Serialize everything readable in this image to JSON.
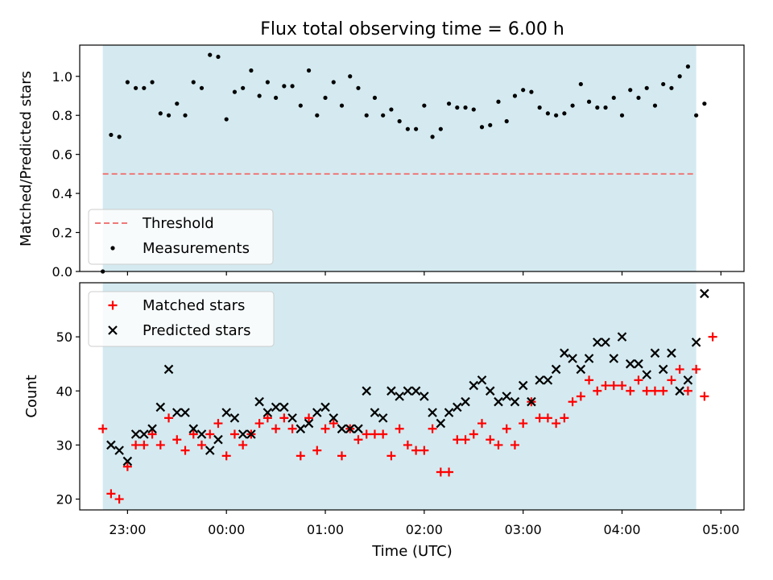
{
  "chart_data": {
    "title": "Flux total observing time = 6.00 h",
    "xlabel": "Time (UTC)",
    "x_ticks": [
      "23:00",
      "00:00",
      "01:00",
      "02:00",
      "03:00",
      "04:00",
      "05:00"
    ],
    "xlim": [
      "22:31",
      "05:14"
    ],
    "observing_window": [
      "22:45",
      "04:45"
    ],
    "colors": {
      "window": "#d4eaf0",
      "threshold": "#f07878",
      "matched": "#ff0000",
      "predicted": "#000000",
      "measurement": "#000000"
    },
    "panels": [
      {
        "type": "scatter",
        "ylabel": "Matched/Predicted stars",
        "ylim": [
          0,
          1.16
        ],
        "y_ticks": [
          "0.0",
          "0.2",
          "0.4",
          "0.6",
          "0.8",
          "1.0"
        ],
        "legend_position": "lower-left",
        "threshold": {
          "name": "Threshold",
          "value": 0.5,
          "x_range": [
            "22:45",
            "04:45"
          ]
        },
        "series": [
          {
            "name": "Measurements",
            "marker": "dot",
            "points": [
              [
                "22:45",
                0.0
              ],
              [
                "22:50",
                0.7
              ],
              [
                "22:55",
                0.69
              ],
              [
                "23:00",
                0.97
              ],
              [
                "23:05",
                0.94
              ],
              [
                "23:10",
                0.94
              ],
              [
                "23:15",
                0.97
              ],
              [
                "23:20",
                0.81
              ],
              [
                "23:25",
                0.8
              ],
              [
                "23:30",
                0.86
              ],
              [
                "23:35",
                0.8
              ],
              [
                "23:40",
                0.97
              ],
              [
                "23:45",
                0.94
              ],
              [
                "23:50",
                1.11
              ],
              [
                "23:55",
                1.1
              ],
              [
                "00:00",
                0.78
              ],
              [
                "00:05",
                0.92
              ],
              [
                "00:10",
                0.94
              ],
              [
                "00:15",
                1.03
              ],
              [
                "00:20",
                0.9
              ],
              [
                "00:25",
                0.97
              ],
              [
                "00:30",
                0.89
              ],
              [
                "00:35",
                0.95
              ],
              [
                "00:40",
                0.95
              ],
              [
                "00:45",
                0.85
              ],
              [
                "00:50",
                1.03
              ],
              [
                "00:55",
                0.8
              ],
              [
                "01:00",
                0.89
              ],
              [
                "01:05",
                0.97
              ],
              [
                "01:10",
                0.85
              ],
              [
                "01:15",
                1.0
              ],
              [
                "01:20",
                0.94
              ],
              [
                "01:25",
                0.8
              ],
              [
                "01:30",
                0.89
              ],
              [
                "01:35",
                0.8
              ],
              [
                "01:40",
                0.83
              ],
              [
                "01:45",
                0.77
              ],
              [
                "01:50",
                0.73
              ],
              [
                "01:55",
                0.73
              ],
              [
                "02:00",
                0.85
              ],
              [
                "02:05",
                0.69
              ],
              [
                "02:10",
                0.73
              ],
              [
                "02:15",
                0.86
              ],
              [
                "02:20",
                0.84
              ],
              [
                "02:25",
                0.84
              ],
              [
                "02:30",
                0.83
              ],
              [
                "02:35",
                0.74
              ],
              [
                "02:40",
                0.75
              ],
              [
                "02:45",
                0.87
              ],
              [
                "02:50",
                0.77
              ],
              [
                "02:55",
                0.9
              ],
              [
                "03:00",
                0.93
              ],
              [
                "03:05",
                0.92
              ],
              [
                "03:10",
                0.84
              ],
              [
                "03:15",
                0.81
              ],
              [
                "03:20",
                0.8
              ],
              [
                "03:25",
                0.81
              ],
              [
                "03:30",
                0.85
              ],
              [
                "03:35",
                0.96
              ],
              [
                "03:40",
                0.87
              ],
              [
                "03:45",
                0.84
              ],
              [
                "03:50",
                0.84
              ],
              [
                "03:55",
                0.89
              ],
              [
                "04:00",
                0.8
              ],
              [
                "04:05",
                0.93
              ],
              [
                "04:10",
                0.89
              ],
              [
                "04:15",
                0.94
              ],
              [
                "04:20",
                0.85
              ],
              [
                "04:25",
                0.96
              ],
              [
                "04:30",
                0.94
              ],
              [
                "04:35",
                1.0
              ],
              [
                "04:40",
                1.05
              ],
              [
                "04:45",
                0.8
              ],
              [
                "04:50",
                0.86
              ]
            ]
          }
        ]
      },
      {
        "type": "scatter",
        "ylabel": "Count",
        "ylim": [
          18,
          60
        ],
        "y_ticks": [
          "20",
          "30",
          "40",
          "50"
        ],
        "legend_position": "upper-left",
        "series": [
          {
            "name": "Matched stars",
            "marker": "plus",
            "points": [
              [
                "22:45",
                33
              ],
              [
                "22:50",
                21
              ],
              [
                "22:55",
                20
              ],
              [
                "23:00",
                26
              ],
              [
                "23:05",
                30
              ],
              [
                "23:10",
                30
              ],
              [
                "23:15",
                32
              ],
              [
                "23:20",
                30
              ],
              [
                "23:25",
                35
              ],
              [
                "23:30",
                31
              ],
              [
                "23:35",
                29
              ],
              [
                "23:40",
                32
              ],
              [
                "23:45",
                30
              ],
              [
                "23:50",
                32
              ],
              [
                "23:55",
                34
              ],
              [
                "00:00",
                28
              ],
              [
                "00:05",
                32
              ],
              [
                "00:10",
                30
              ],
              [
                "00:15",
                32
              ],
              [
                "00:20",
                34
              ],
              [
                "00:25",
                35
              ],
              [
                "00:30",
                33
              ],
              [
                "00:35",
                35
              ],
              [
                "00:40",
                33
              ],
              [
                "00:45",
                28
              ],
              [
                "00:50",
                35
              ],
              [
                "00:55",
                29
              ],
              [
                "01:00",
                33
              ],
              [
                "01:05",
                34
              ],
              [
                "01:10",
                28
              ],
              [
                "01:15",
                33
              ],
              [
                "01:20",
                31
              ],
              [
                "01:25",
                32
              ],
              [
                "01:30",
                32
              ],
              [
                "01:35",
                32
              ],
              [
                "01:40",
                28
              ],
              [
                "01:45",
                33
              ],
              [
                "01:50",
                30
              ],
              [
                "01:55",
                29
              ],
              [
                "02:00",
                29
              ],
              [
                "02:05",
                33
              ],
              [
                "02:10",
                25
              ],
              [
                "02:15",
                25
              ],
              [
                "02:20",
                31
              ],
              [
                "02:25",
                31
              ],
              [
                "02:30",
                32
              ],
              [
                "02:35",
                34
              ],
              [
                "02:40",
                31
              ],
              [
                "02:45",
                30
              ],
              [
                "02:50",
                33
              ],
              [
                "02:55",
                30
              ],
              [
                "03:00",
                34
              ],
              [
                "03:05",
                38
              ],
              [
                "03:10",
                35
              ],
              [
                "03:15",
                35
              ],
              [
                "03:20",
                34
              ],
              [
                "03:25",
                35
              ],
              [
                "03:30",
                38
              ],
              [
                "03:35",
                39
              ],
              [
                "03:40",
                42
              ],
              [
                "03:45",
                40
              ],
              [
                "03:50",
                41
              ],
              [
                "03:55",
                41
              ],
              [
                "04:00",
                41
              ],
              [
                "04:05",
                40
              ],
              [
                "04:10",
                42
              ],
              [
                "04:15",
                40
              ],
              [
                "04:20",
                40
              ],
              [
                "04:25",
                40
              ],
              [
                "04:30",
                42
              ],
              [
                "04:35",
                44
              ],
              [
                "04:40",
                40
              ],
              [
                "04:45",
                44
              ],
              [
                "04:50",
                39
              ],
              [
                "04:55",
                50
              ]
            ]
          },
          {
            "name": "Predicted stars",
            "marker": "x",
            "points": [
              [
                "22:50",
                30
              ],
              [
                "22:55",
                29
              ],
              [
                "23:00",
                27
              ],
              [
                "23:05",
                32
              ],
              [
                "23:10",
                32
              ],
              [
                "23:15",
                33
              ],
              [
                "23:20",
                37
              ],
              [
                "23:25",
                44
              ],
              [
                "23:30",
                36
              ],
              [
                "23:35",
                36
              ],
              [
                "23:40",
                33
              ],
              [
                "23:45",
                32
              ],
              [
                "23:50",
                29
              ],
              [
                "23:55",
                31
              ],
              [
                "00:00",
                36
              ],
              [
                "00:05",
                35
              ],
              [
                "00:10",
                32
              ],
              [
                "00:15",
                32
              ],
              [
                "00:20",
                38
              ],
              [
                "00:25",
                36
              ],
              [
                "00:30",
                37
              ],
              [
                "00:35",
                37
              ],
              [
                "00:40",
                35
              ],
              [
                "00:45",
                33
              ],
              [
                "00:50",
                34
              ],
              [
                "00:55",
                36
              ],
              [
                "01:00",
                37
              ],
              [
                "01:05",
                35
              ],
              [
                "01:10",
                33
              ],
              [
                "01:15",
                33
              ],
              [
                "01:20",
                33
              ],
              [
                "01:25",
                40
              ],
              [
                "01:30",
                36
              ],
              [
                "01:35",
                35
              ],
              [
                "01:40",
                40
              ],
              [
                "01:45",
                39
              ],
              [
                "01:50",
                40
              ],
              [
                "01:55",
                40
              ],
              [
                "02:00",
                39
              ],
              [
                "02:05",
                36
              ],
              [
                "02:10",
                34
              ],
              [
                "02:15",
                36
              ],
              [
                "02:20",
                37
              ],
              [
                "02:25",
                38
              ],
              [
                "02:30",
                41
              ],
              [
                "02:35",
                42
              ],
              [
                "02:40",
                40
              ],
              [
                "02:45",
                38
              ],
              [
                "02:50",
                39
              ],
              [
                "02:55",
                38
              ],
              [
                "03:00",
                41
              ],
              [
                "03:05",
                38
              ],
              [
                "03:10",
                42
              ],
              [
                "03:15",
                42
              ],
              [
                "03:20",
                44
              ],
              [
                "03:25",
                47
              ],
              [
                "03:30",
                46
              ],
              [
                "03:35",
                44
              ],
              [
                "03:40",
                46
              ],
              [
                "03:45",
                49
              ],
              [
                "03:50",
                49
              ],
              [
                "03:55",
                46
              ],
              [
                "04:00",
                50
              ],
              [
                "04:05",
                45
              ],
              [
                "04:10",
                45
              ],
              [
                "04:15",
                43
              ],
              [
                "04:20",
                47
              ],
              [
                "04:25",
                44
              ],
              [
                "04:30",
                47
              ],
              [
                "04:35",
                40
              ],
              [
                "04:40",
                42
              ],
              [
                "04:45",
                49
              ],
              [
                "04:50",
                58
              ]
            ]
          }
        ]
      }
    ]
  }
}
